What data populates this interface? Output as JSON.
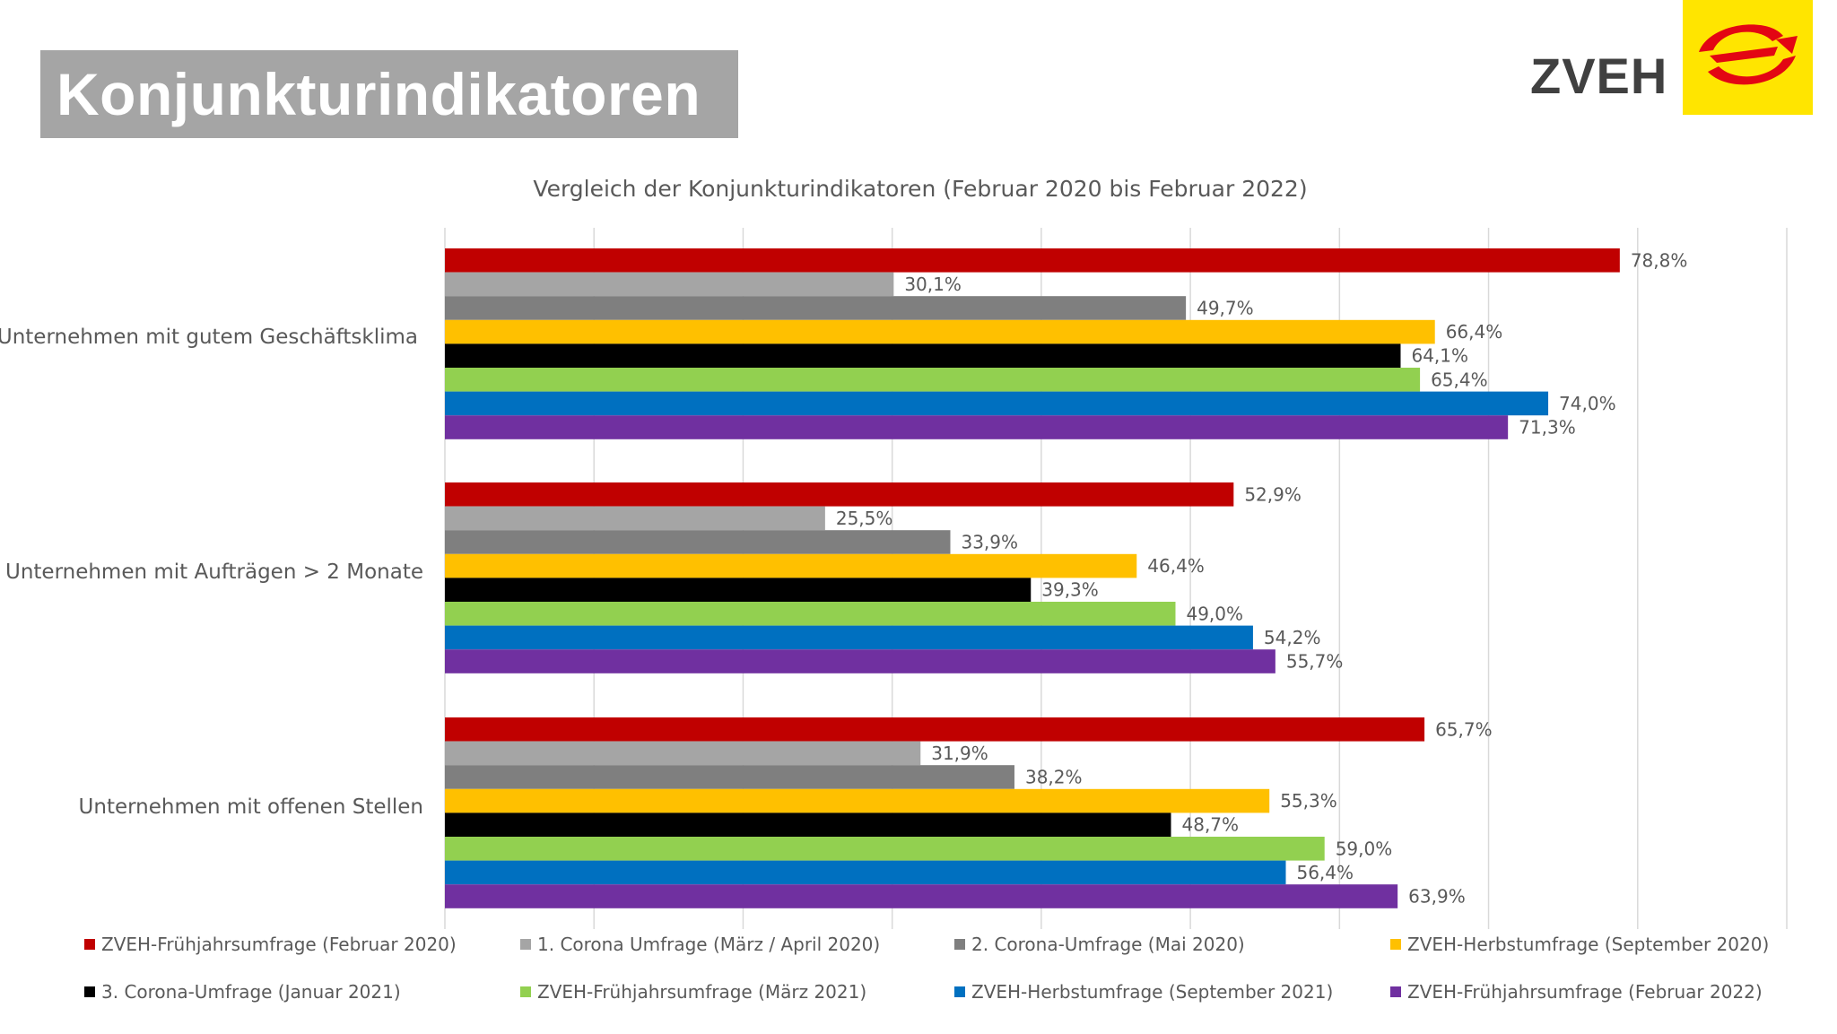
{
  "header": {
    "title": "Konjunkturindikatoren",
    "brand": "ZVEH"
  },
  "chart_data": {
    "type": "bar",
    "orientation": "horizontal",
    "title": "Vergleich der Konjunkturindikatoren (Februar 2020 bis Februar 2022)",
    "categories": [
      "Unternehmen mit gutem Geschäftsklima",
      "Unternehmen mit Aufträgen > 2 Monate",
      "Unternehmen mit offenen Stellen"
    ],
    "xlim": [
      0,
      90
    ],
    "grid": true,
    "legend_position": "bottom",
    "series": [
      {
        "name": "ZVEH-Frühjahrsumfrage (Februar 2020)",
        "color": "#c00000",
        "values": [
          78.8,
          52.9,
          65.7
        ],
        "labels": [
          "78,8%",
          "52,9%",
          "65,7%"
        ]
      },
      {
        "name": "1. Corona Umfrage (März / April 2020)",
        "color": "#a5a5a5",
        "values": [
          30.1,
          25.5,
          31.9
        ],
        "labels": [
          "30,1%",
          "25,5%",
          "31,9%"
        ]
      },
      {
        "name": "2. Corona-Umfrage (Mai 2020)",
        "color": "#7f7f7f",
        "values": [
          49.7,
          33.9,
          38.2
        ],
        "labels": [
          "49,7%",
          "33,9%",
          "38,2%"
        ]
      },
      {
        "name": "ZVEH-Herbstumfrage (September 2020)",
        "color": "#ffc000",
        "values": [
          66.4,
          46.4,
          55.3
        ],
        "labels": [
          "66,4%",
          "46,4%",
          "55,3%"
        ]
      },
      {
        "name": "3. Corona-Umfrage (Januar 2021)",
        "color": "#000000",
        "values": [
          64.1,
          39.3,
          48.7
        ],
        "labels": [
          "64,1%",
          "39,3%",
          "48,7%"
        ]
      },
      {
        "name": "ZVEH-Frühjahrsumfrage (März 2021)",
        "color": "#92d050",
        "values": [
          65.4,
          49.0,
          59.0
        ],
        "labels": [
          "65,4%",
          "49,0%",
          "59,0%"
        ]
      },
      {
        "name": "ZVEH-Herbstumfrage (September 2021)",
        "color": "#0070c0",
        "values": [
          74.0,
          54.2,
          56.4
        ],
        "labels": [
          "74,0%",
          "54,2%",
          "56,4%"
        ]
      },
      {
        "name": "ZVEH-Frühjahrsumfrage (Februar 2022)",
        "color": "#7030a0",
        "values": [
          71.3,
          55.7,
          63.9
        ],
        "labels": [
          "71,3%",
          "55,7%",
          "63,9%"
        ]
      }
    ]
  }
}
